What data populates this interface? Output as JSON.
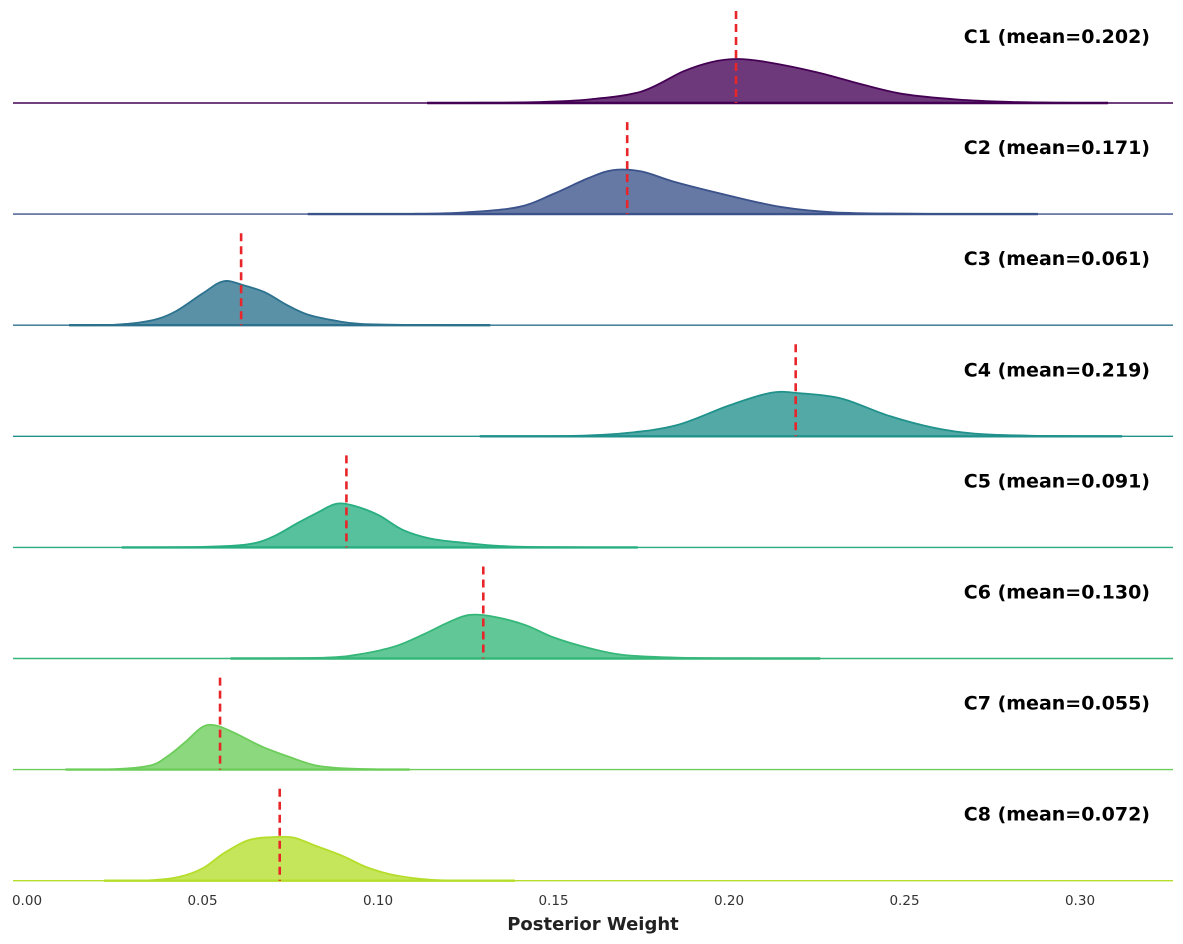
{
  "chart_data": {
    "type": "area",
    "title": "",
    "xlabel": "Posterior Weight",
    "xlim": [
      -0.004,
      0.328
    ],
    "x_ticks": [
      "0.00",
      "0.05",
      "0.10",
      "0.15",
      "0.20",
      "0.25",
      "0.30"
    ],
    "x_tick_values": [
      0.0,
      0.05,
      0.1,
      0.15,
      0.2,
      0.25,
      0.3
    ],
    "mean_line_color": "#e8262a",
    "series": [
      {
        "name": "C1",
        "label": "C1 (mean=0.202)",
        "mean": 0.202,
        "color": "#440154",
        "support": [
          0.114,
          0.308
        ],
        "peak_x": 0.198,
        "density": [
          [
            0.114,
            0
          ],
          [
            0.13,
            0.004
          ],
          [
            0.145,
            0.02
          ],
          [
            0.16,
            0.08
          ],
          [
            0.175,
            0.26
          ],
          [
            0.187,
            0.72
          ],
          [
            0.195,
            0.93
          ],
          [
            0.202,
            1.0
          ],
          [
            0.21,
            0.94
          ],
          [
            0.225,
            0.7
          ],
          [
            0.238,
            0.42
          ],
          [
            0.25,
            0.2
          ],
          [
            0.265,
            0.08
          ],
          [
            0.28,
            0.025
          ],
          [
            0.295,
            0.005
          ],
          [
            0.308,
            0
          ]
        ]
      },
      {
        "name": "C2",
        "label": "C2 (mean=0.171)",
        "mean": 0.171,
        "color": "#3b528b",
        "support": [
          0.08,
          0.288
        ],
        "peak_x": 0.168,
        "density": [
          [
            0.08,
            0
          ],
          [
            0.11,
            0.006
          ],
          [
            0.125,
            0.04
          ],
          [
            0.14,
            0.16
          ],
          [
            0.15,
            0.46
          ],
          [
            0.16,
            0.82
          ],
          [
            0.167,
            1.0
          ],
          [
            0.175,
            0.97
          ],
          [
            0.185,
            0.72
          ],
          [
            0.2,
            0.42
          ],
          [
            0.215,
            0.16
          ],
          [
            0.23,
            0.04
          ],
          [
            0.25,
            0.01
          ],
          [
            0.27,
            0.002
          ],
          [
            0.288,
            0
          ]
        ]
      },
      {
        "name": "C3",
        "label": "C3 (mean=0.061)",
        "mean": 0.061,
        "color": "#2c728e",
        "support": [
          0.012,
          0.132
        ],
        "peak_x": 0.056,
        "density": [
          [
            0.012,
            0
          ],
          [
            0.025,
            0.01
          ],
          [
            0.035,
            0.1
          ],
          [
            0.042,
            0.3
          ],
          [
            0.05,
            0.72
          ],
          [
            0.056,
            1.0
          ],
          [
            0.062,
            0.9
          ],
          [
            0.068,
            0.74
          ],
          [
            0.074,
            0.46
          ],
          [
            0.08,
            0.24
          ],
          [
            0.088,
            0.1
          ],
          [
            0.095,
            0.03
          ],
          [
            0.11,
            0.004
          ],
          [
            0.132,
            0
          ]
        ]
      },
      {
        "name": "C4",
        "label": "C4 (mean=0.219)",
        "mean": 0.219,
        "color": "#21918c",
        "support": [
          0.129,
          0.312
        ],
        "peak_x": 0.215,
        "density": [
          [
            0.129,
            0
          ],
          [
            0.155,
            0.01
          ],
          [
            0.17,
            0.07
          ],
          [
            0.185,
            0.25
          ],
          [
            0.2,
            0.7
          ],
          [
            0.212,
            0.99
          ],
          [
            0.22,
            0.98
          ],
          [
            0.232,
            0.86
          ],
          [
            0.245,
            0.48
          ],
          [
            0.258,
            0.2
          ],
          [
            0.27,
            0.06
          ],
          [
            0.285,
            0.015
          ],
          [
            0.3,
            0.004
          ],
          [
            0.312,
            0
          ]
        ]
      },
      {
        "name": "C5",
        "label": "C5 (mean=0.091)",
        "mean": 0.091,
        "color": "#28ae80",
        "support": [
          0.027,
          0.174
        ],
        "peak_x": 0.088,
        "density": [
          [
            0.027,
            0
          ],
          [
            0.05,
            0.01
          ],
          [
            0.063,
            0.07
          ],
          [
            0.07,
            0.24
          ],
          [
            0.077,
            0.55
          ],
          [
            0.083,
            0.8
          ],
          [
            0.088,
            0.99
          ],
          [
            0.093,
            0.95
          ],
          [
            0.1,
            0.74
          ],
          [
            0.107,
            0.4
          ],
          [
            0.115,
            0.2
          ],
          [
            0.125,
            0.1
          ],
          [
            0.135,
            0.03
          ],
          [
            0.15,
            0.005
          ],
          [
            0.174,
            0
          ]
        ]
      },
      {
        "name": "C6",
        "label": "C6 (mean=0.130)",
        "mean": 0.13,
        "color": "#35b779",
        "support": [
          0.058,
          0.226
        ],
        "peak_x": 0.125,
        "density": [
          [
            0.058,
            0
          ],
          [
            0.085,
            0.02
          ],
          [
            0.095,
            0.1
          ],
          [
            0.105,
            0.28
          ],
          [
            0.113,
            0.55
          ],
          [
            0.12,
            0.82
          ],
          [
            0.126,
            0.99
          ],
          [
            0.133,
            0.95
          ],
          [
            0.142,
            0.76
          ],
          [
            0.15,
            0.48
          ],
          [
            0.16,
            0.24
          ],
          [
            0.17,
            0.08
          ],
          [
            0.185,
            0.02
          ],
          [
            0.205,
            0.004
          ],
          [
            0.226,
            0
          ]
        ]
      },
      {
        "name": "C7",
        "label": "C7 (mean=0.055)",
        "mean": 0.055,
        "color": "#6ccd5a",
        "support": [
          0.011,
          0.109
        ],
        "peak_x": 0.051,
        "density": [
          [
            0.011,
            0
          ],
          [
            0.025,
            0.01
          ],
          [
            0.035,
            0.09
          ],
          [
            0.04,
            0.3
          ],
          [
            0.045,
            0.62
          ],
          [
            0.05,
            0.97
          ],
          [
            0.054,
            1.0
          ],
          [
            0.06,
            0.8
          ],
          [
            0.067,
            0.52
          ],
          [
            0.075,
            0.28
          ],
          [
            0.082,
            0.1
          ],
          [
            0.09,
            0.03
          ],
          [
            0.1,
            0.005
          ],
          [
            0.109,
            0
          ]
        ]
      },
      {
        "name": "C8",
        "label": "C8 (mean=0.072)",
        "mean": 0.072,
        "color": "#b5de2b",
        "support": [
          0.022,
          0.139
        ],
        "peak_x": 0.073,
        "density": [
          [
            0.022,
            0
          ],
          [
            0.035,
            0.01
          ],
          [
            0.043,
            0.08
          ],
          [
            0.05,
            0.28
          ],
          [
            0.056,
            0.62
          ],
          [
            0.063,
            0.92
          ],
          [
            0.07,
            0.99
          ],
          [
            0.076,
            0.98
          ],
          [
            0.082,
            0.8
          ],
          [
            0.09,
            0.56
          ],
          [
            0.097,
            0.3
          ],
          [
            0.105,
            0.12
          ],
          [
            0.115,
            0.02
          ],
          [
            0.125,
            0.004
          ],
          [
            0.139,
            0
          ]
        ]
      }
    ]
  }
}
